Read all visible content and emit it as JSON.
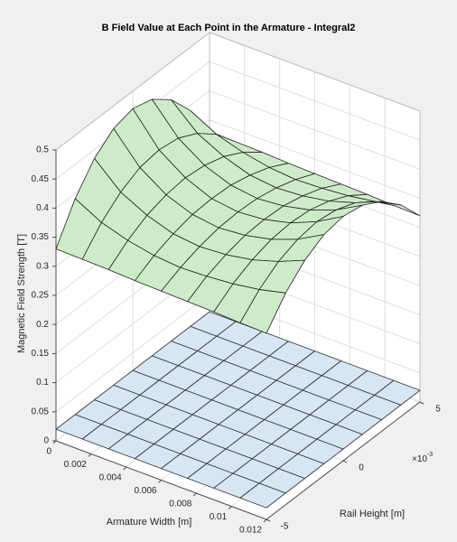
{
  "chart_data": {
    "type": "surface3d",
    "title": "B Field Value at Each Point in the Armature - Integral2",
    "xlabel": "Armature Width [m]",
    "ylabel": "Rail Height [m]",
    "zlabel": "Magnetic Field Strength [T]",
    "y_multiplier": {
      "base": "×10",
      "exponent": "-3"
    },
    "xlim": [
      0,
      0.012
    ],
    "ylim": [
      -5,
      5
    ],
    "zlim": [
      0,
      0.5
    ],
    "xticks": [
      0,
      0.002,
      0.004,
      0.006,
      0.008,
      0.01,
      0.012
    ],
    "yticks": [
      -5,
      0,
      5
    ],
    "zticks": [
      0,
      0.05,
      0.1,
      0.15,
      0.2,
      0.25,
      0.3,
      0.35,
      0.4,
      0.45,
      0.5
    ],
    "grid": true,
    "x": [
      0,
      0.0015,
      0.003,
      0.0045,
      0.006,
      0.0075,
      0.009,
      0.0105,
      0.012
    ],
    "y": [
      -5,
      -3.75,
      -2.5,
      -1.25,
      0,
      1.25,
      2.5,
      3.75,
      5
    ],
    "surfaces": [
      {
        "color": "#d7e6f4",
        "edgecolor": "#333333",
        "z": [
          [
            0.02,
            0.02,
            0.02,
            0.02,
            0.02,
            0.02,
            0.02,
            0.02,
            0.02
          ],
          [
            0.02,
            0.02,
            0.02,
            0.02,
            0.02,
            0.02,
            0.02,
            0.02,
            0.02
          ],
          [
            0.02,
            0.02,
            0.02,
            0.02,
            0.02,
            0.02,
            0.02,
            0.02,
            0.02
          ],
          [
            0.02,
            0.02,
            0.02,
            0.02,
            0.02,
            0.02,
            0.02,
            0.02,
            0.02
          ],
          [
            0.02,
            0.02,
            0.02,
            0.02,
            0.02,
            0.02,
            0.02,
            0.02,
            0.02
          ],
          [
            0.02,
            0.02,
            0.02,
            0.02,
            0.02,
            0.02,
            0.02,
            0.02,
            0.02
          ],
          [
            0.02,
            0.02,
            0.02,
            0.02,
            0.02,
            0.02,
            0.02,
            0.02,
            0.02
          ],
          [
            0.02,
            0.02,
            0.02,
            0.02,
            0.02,
            0.02,
            0.02,
            0.02,
            0.02
          ],
          [
            0.02,
            0.02,
            0.02,
            0.02,
            0.02,
            0.02,
            0.02,
            0.02,
            0.02
          ]
        ]
      },
      {
        "color": "#cdebc8",
        "edgecolor": "#222222",
        "z": [
          [
            0.33,
            0.391,
            0.435,
            0.461,
            0.47,
            0.461,
            0.435,
            0.391,
            0.33
          ],
          [
            0.329,
            0.367,
            0.394,
            0.411,
            0.416,
            0.411,
            0.394,
            0.367,
            0.329
          ],
          [
            0.328,
            0.353,
            0.371,
            0.381,
            0.385,
            0.381,
            0.371,
            0.353,
            0.328
          ],
          [
            0.326,
            0.344,
            0.356,
            0.364,
            0.366,
            0.364,
            0.356,
            0.344,
            0.326
          ],
          [
            0.325,
            0.34,
            0.351,
            0.358,
            0.36,
            0.358,
            0.351,
            0.34,
            0.325
          ],
          [
            0.324,
            0.342,
            0.354,
            0.362,
            0.364,
            0.362,
            0.354,
            0.342,
            0.324
          ],
          [
            0.323,
            0.346,
            0.362,
            0.372,
            0.375,
            0.372,
            0.362,
            0.346,
            0.323
          ],
          [
            0.321,
            0.353,
            0.376,
            0.389,
            0.394,
            0.389,
            0.376,
            0.353,
            0.321
          ],
          [
            0.32,
            0.364,
            0.395,
            0.414,
            0.42,
            0.414,
            0.395,
            0.364,
            0.32
          ]
        ]
      }
    ]
  }
}
